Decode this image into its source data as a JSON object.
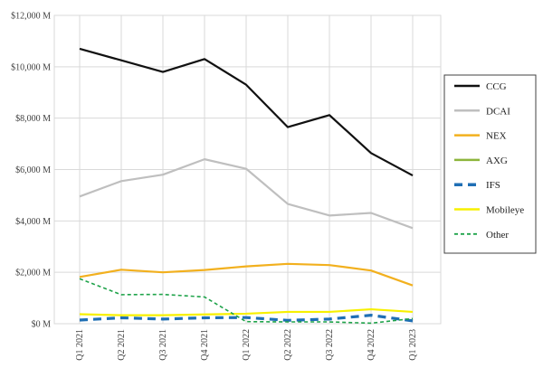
{
  "chart_data": {
    "type": "line",
    "title": "",
    "xlabel": "",
    "ylabel": "",
    "categories": [
      "Q1 2021",
      "Q2 2021",
      "Q3 2021",
      "Q4 2021",
      "Q1 2022",
      "Q2 2022",
      "Q3 2022",
      "Q4 2022",
      "Q1 2023"
    ],
    "ylim": [
      0,
      12000
    ],
    "y_ticks": [
      0,
      2000,
      4000,
      6000,
      8000,
      10000,
      12000
    ],
    "y_tick_labels": [
      "$0 M",
      "$2,000 M",
      "$4,000 M",
      "$6,000 M",
      "$8,000 M",
      "$10,000 M",
      "$12,000 M"
    ],
    "grid": true,
    "legend_position": "right",
    "series": [
      {
        "name": "CCG",
        "color": "#111111",
        "dash": "solid",
        "values": [
          10700,
          10250,
          9800,
          10300,
          9300,
          7650,
          8120,
          6640,
          5770
        ]
      },
      {
        "name": "DCAI",
        "color": "#bfbfbf",
        "dash": "solid",
        "values": [
          4950,
          5550,
          5800,
          6400,
          6030,
          4660,
          4210,
          4310,
          3720
        ]
      },
      {
        "name": "NEX",
        "color": "#f2b01e",
        "dash": "solid",
        "values": [
          1820,
          2100,
          2000,
          2090,
          2230,
          2330,
          2280,
          2070,
          1490
        ]
      },
      {
        "name": "AXG",
        "color": "#8db53c",
        "dash": "solid",
        "values": [
          null,
          null,
          null,
          null,
          null,
          null,
          null,
          null,
          null
        ]
      },
      {
        "name": "IFS",
        "color": "#1f6fb4",
        "dash": "long",
        "values": [
          140,
          230,
          180,
          230,
          240,
          130,
          180,
          330,
          110
        ]
      },
      {
        "name": "Mobileye",
        "color": "#f7f000",
        "dash": "solid",
        "values": [
          370,
          330,
          330,
          360,
          390,
          460,
          460,
          560,
          460
        ]
      },
      {
        "name": "Other",
        "color": "#1fa34a",
        "dash": "short",
        "values": [
          1750,
          1130,
          1140,
          1040,
          80,
          70,
          70,
          20,
          200
        ]
      }
    ]
  }
}
